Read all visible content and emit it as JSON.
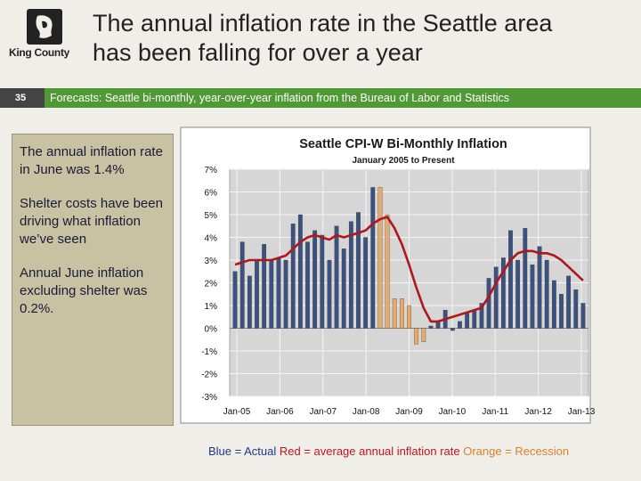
{
  "header": {
    "logo_text": "King County",
    "title_line1": "The annual inflation rate in the Seattle area",
    "title_line2": "has been falling for over a year",
    "slide_number": "35",
    "subtitle": "Forecasts:  Seattle bi-monthly, year-over-year inflation from the Bureau of Labor and Statistics"
  },
  "sidebar": {
    "point1": "The annual inflation rate in June was 1.4%",
    "point2": "Shelter costs have been driving what inflation we’ve seen",
    "point3": "Annual June inflation excluding shelter was 0.2%."
  },
  "legend": {
    "blue": "Blue = Actual",
    "red": "Red = average annual inflation rate",
    "orange": "Orange = Recession"
  },
  "colors": {
    "actual": "#3b5280",
    "recession": "#e8a96a",
    "average": "#b0171c",
    "plot_bg": "#d6d6d6"
  },
  "chart_data": {
    "type": "bar",
    "title": "Seattle CPI-W Bi-Monthly Inflation",
    "subtitle": "January 2005 to Present",
    "ylim": [
      -3,
      7
    ],
    "y_ticks": [
      "7%",
      "6%",
      "5%",
      "4%",
      "3%",
      "2%",
      "1%",
      "0%",
      "-1%",
      "-2%",
      "-3%"
    ],
    "x_ticks": [
      "Jan-05",
      "Jan-06",
      "Jan-07",
      "Jan-08",
      "Jan-09",
      "Jan-10",
      "Jan-11",
      "Jan-12",
      "Jan-13"
    ],
    "series": [
      {
        "name": "Actual",
        "values": [
          2.5,
          3.8,
          2.3,
          3.0,
          3.7,
          3.0,
          3.1,
          3.0,
          4.6,
          5.0,
          3.8,
          4.3,
          4.1,
          3.0,
          4.5,
          3.5,
          4.7,
          5.1,
          4.0,
          6.2,
          6.2,
          5.0,
          1.3,
          1.3,
          1.0,
          -0.7,
          -0.6,
          0.1,
          0.3,
          0.8,
          -0.1,
          0.3,
          0.7,
          0.8,
          1.1,
          2.2,
          2.7,
          3.1,
          4.3,
          3.0,
          4.4,
          2.8,
          3.6,
          3.0,
          2.1,
          1.5,
          2.3,
          1.7,
          1.1
        ],
        "recession_flags": [
          0,
          0,
          0,
          0,
          0,
          0,
          0,
          0,
          0,
          0,
          0,
          0,
          0,
          0,
          0,
          0,
          0,
          0,
          0,
          0,
          1,
          1,
          1,
          1,
          1,
          1,
          1,
          0,
          0,
          0,
          0,
          0,
          0,
          0,
          0,
          0,
          0,
          0,
          0,
          0,
          0,
          0,
          0,
          0,
          0,
          0,
          0,
          0,
          0
        ]
      },
      {
        "name": "Average annual inflation rate",
        "values": [
          2.8,
          2.9,
          3.0,
          3.0,
          3.0,
          3.0,
          3.1,
          3.2,
          3.5,
          3.8,
          4.0,
          4.1,
          4.0,
          3.9,
          4.1,
          4.0,
          4.1,
          4.2,
          4.3,
          4.6,
          4.8,
          4.9,
          4.4,
          3.7,
          2.8,
          1.8,
          0.9,
          0.3,
          0.3,
          0.4,
          0.5,
          0.6,
          0.7,
          0.8,
          0.9,
          1.4,
          2.0,
          2.5,
          3.0,
          3.3,
          3.4,
          3.4,
          3.3,
          3.3,
          3.2,
          3.0,
          2.7,
          2.4,
          2.1
        ]
      }
    ]
  }
}
